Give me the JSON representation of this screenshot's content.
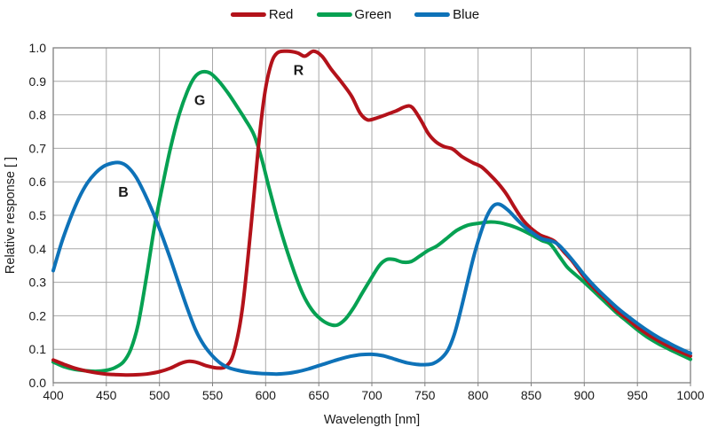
{
  "legend": {
    "items": [
      {
        "label": "Red",
        "color": "#b3121a"
      },
      {
        "label": "Green",
        "color": "#06a152"
      },
      {
        "label": "Blue",
        "color": "#0e72b8"
      }
    ]
  },
  "chart_data": {
    "type": "line",
    "title": "",
    "xlabel": "Wavelength [nm]",
    "ylabel": "Relative response [ ]",
    "xlim": [
      400,
      1000
    ],
    "ylim": [
      0.0,
      1.0
    ],
    "x_ticks": [
      400,
      450,
      500,
      550,
      600,
      650,
      700,
      750,
      800,
      850,
      900,
      950,
      1000
    ],
    "y_tick_labels": [
      "0.0",
      "0.1",
      "0.2",
      "0.3",
      "0.4",
      "0.5",
      "0.6",
      "0.7",
      "0.8",
      "0.9",
      "1.0"
    ],
    "grid": true,
    "legend_position": "top-center",
    "grid_color": "#a8a8a8",
    "frame_color": "#808080",
    "series": [
      {
        "name": "Red",
        "color": "#b3121a",
        "z": 2,
        "marker_label": {
          "text": "R",
          "x": 631,
          "y": 0.935
        },
        "points": [
          [
            400,
            0.068
          ],
          [
            410,
            0.055
          ],
          [
            420,
            0.044
          ],
          [
            430,
            0.036
          ],
          [
            440,
            0.03
          ],
          [
            450,
            0.026
          ],
          [
            460,
            0.024
          ],
          [
            470,
            0.023
          ],
          [
            480,
            0.024
          ],
          [
            490,
            0.027
          ],
          [
            500,
            0.033
          ],
          [
            510,
            0.043
          ],
          [
            520,
            0.058
          ],
          [
            528,
            0.064
          ],
          [
            536,
            0.06
          ],
          [
            545,
            0.05
          ],
          [
            555,
            0.044
          ],
          [
            563,
            0.05
          ],
          [
            570,
            0.09
          ],
          [
            578,
            0.22
          ],
          [
            586,
            0.46
          ],
          [
            593,
            0.7
          ],
          [
            599,
            0.86
          ],
          [
            605,
            0.95
          ],
          [
            611,
            0.985
          ],
          [
            620,
            0.99
          ],
          [
            630,
            0.985
          ],
          [
            637,
            0.975
          ],
          [
            645,
            0.99
          ],
          [
            653,
            0.975
          ],
          [
            662,
            0.935
          ],
          [
            672,
            0.895
          ],
          [
            681,
            0.855
          ],
          [
            689,
            0.805
          ],
          [
            696,
            0.785
          ],
          [
            704,
            0.79
          ],
          [
            713,
            0.8
          ],
          [
            723,
            0.812
          ],
          [
            732,
            0.825
          ],
          [
            738,
            0.822
          ],
          [
            746,
            0.785
          ],
          [
            753,
            0.745
          ],
          [
            760,
            0.72
          ],
          [
            768,
            0.705
          ],
          [
            776,
            0.698
          ],
          [
            785,
            0.675
          ],
          [
            795,
            0.657
          ],
          [
            803,
            0.645
          ],
          [
            811,
            0.622
          ],
          [
            819,
            0.595
          ],
          [
            827,
            0.562
          ],
          [
            835,
            0.52
          ],
          [
            843,
            0.483
          ],
          [
            851,
            0.458
          ],
          [
            859,
            0.44
          ],
          [
            866,
            0.432
          ],
          [
            873,
            0.42
          ],
          [
            881,
            0.39
          ],
          [
            889,
            0.362
          ],
          [
            900,
            0.315
          ],
          [
            910,
            0.28
          ],
          [
            920,
            0.25
          ],
          [
            930,
            0.217
          ],
          [
            940,
            0.192
          ],
          [
            950,
            0.166
          ],
          [
            960,
            0.144
          ],
          [
            970,
            0.125
          ],
          [
            980,
            0.108
          ],
          [
            990,
            0.093
          ],
          [
            1000,
            0.08
          ]
        ]
      },
      {
        "name": "Green",
        "color": "#06a152",
        "z": 1,
        "marker_label": {
          "text": "G",
          "x": 538,
          "y": 0.845
        },
        "points": [
          [
            400,
            0.062
          ],
          [
            410,
            0.048
          ],
          [
            420,
            0.04
          ],
          [
            430,
            0.036
          ],
          [
            440,
            0.034
          ],
          [
            450,
            0.037
          ],
          [
            458,
            0.045
          ],
          [
            466,
            0.062
          ],
          [
            473,
            0.1
          ],
          [
            480,
            0.175
          ],
          [
            488,
            0.32
          ],
          [
            495,
            0.46
          ],
          [
            502,
            0.575
          ],
          [
            510,
            0.695
          ],
          [
            518,
            0.795
          ],
          [
            526,
            0.868
          ],
          [
            533,
            0.912
          ],
          [
            540,
            0.928
          ],
          [
            548,
            0.924
          ],
          [
            556,
            0.9
          ],
          [
            565,
            0.863
          ],
          [
            573,
            0.825
          ],
          [
            581,
            0.785
          ],
          [
            589,
            0.74
          ],
          [
            596,
            0.672
          ],
          [
            603,
            0.585
          ],
          [
            611,
            0.49
          ],
          [
            619,
            0.405
          ],
          [
            627,
            0.33
          ],
          [
            635,
            0.265
          ],
          [
            643,
            0.22
          ],
          [
            651,
            0.192
          ],
          [
            659,
            0.176
          ],
          [
            667,
            0.172
          ],
          [
            675,
            0.19
          ],
          [
            683,
            0.225
          ],
          [
            691,
            0.268
          ],
          [
            699,
            0.31
          ],
          [
            707,
            0.35
          ],
          [
            714,
            0.368
          ],
          [
            721,
            0.368
          ],
          [
            729,
            0.36
          ],
          [
            737,
            0.362
          ],
          [
            745,
            0.378
          ],
          [
            753,
            0.395
          ],
          [
            761,
            0.408
          ],
          [
            770,
            0.43
          ],
          [
            780,
            0.455
          ],
          [
            790,
            0.47
          ],
          [
            800,
            0.476
          ],
          [
            810,
            0.48
          ],
          [
            820,
            0.478
          ],
          [
            830,
            0.47
          ],
          [
            840,
            0.458
          ],
          [
            850,
            0.442
          ],
          [
            860,
            0.425
          ],
          [
            868,
            0.414
          ],
          [
            876,
            0.38
          ],
          [
            884,
            0.345
          ],
          [
            892,
            0.322
          ],
          [
            900,
            0.3
          ],
          [
            910,
            0.27
          ],
          [
            920,
            0.24
          ],
          [
            930,
            0.21
          ],
          [
            940,
            0.184
          ],
          [
            950,
            0.158
          ],
          [
            960,
            0.135
          ],
          [
            970,
            0.116
          ],
          [
            980,
            0.1
          ],
          [
            990,
            0.085
          ],
          [
            1000,
            0.07
          ]
        ]
      },
      {
        "name": "Blue",
        "color": "#0e72b8",
        "z": 3,
        "marker_label": {
          "text": "B",
          "x": 466,
          "y": 0.572
        },
        "points": [
          [
            400,
            0.335
          ],
          [
            408,
            0.42
          ],
          [
            416,
            0.49
          ],
          [
            424,
            0.55
          ],
          [
            432,
            0.596
          ],
          [
            440,
            0.627
          ],
          [
            448,
            0.647
          ],
          [
            456,
            0.656
          ],
          [
            463,
            0.657
          ],
          [
            470,
            0.645
          ],
          [
            478,
            0.614
          ],
          [
            486,
            0.565
          ],
          [
            494,
            0.508
          ],
          [
            502,
            0.443
          ],
          [
            510,
            0.373
          ],
          [
            518,
            0.298
          ],
          [
            526,
            0.224
          ],
          [
            534,
            0.158
          ],
          [
            542,
            0.112
          ],
          [
            550,
            0.08
          ],
          [
            558,
            0.057
          ],
          [
            566,
            0.044
          ],
          [
            574,
            0.037
          ],
          [
            582,
            0.032
          ],
          [
            590,
            0.029
          ],
          [
            600,
            0.027
          ],
          [
            610,
            0.026
          ],
          [
            620,
            0.028
          ],
          [
            630,
            0.033
          ],
          [
            640,
            0.041
          ],
          [
            650,
            0.051
          ],
          [
            660,
            0.061
          ],
          [
            670,
            0.071
          ],
          [
            680,
            0.079
          ],
          [
            690,
            0.084
          ],
          [
            700,
            0.085
          ],
          [
            710,
            0.081
          ],
          [
            718,
            0.074
          ],
          [
            726,
            0.066
          ],
          [
            734,
            0.059
          ],
          [
            742,
            0.055
          ],
          [
            750,
            0.054
          ],
          [
            758,
            0.058
          ],
          [
            766,
            0.075
          ],
          [
            772,
            0.1
          ],
          [
            778,
            0.148
          ],
          [
            784,
            0.22
          ],
          [
            790,
            0.3
          ],
          [
            796,
            0.378
          ],
          [
            802,
            0.443
          ],
          [
            808,
            0.495
          ],
          [
            814,
            0.527
          ],
          [
            820,
            0.533
          ],
          [
            828,
            0.516
          ],
          [
            836,
            0.49
          ],
          [
            844,
            0.465
          ],
          [
            852,
            0.446
          ],
          [
            860,
            0.43
          ],
          [
            868,
            0.424
          ],
          [
            875,
            0.414
          ],
          [
            883,
            0.388
          ],
          [
            891,
            0.358
          ],
          [
            900,
            0.322
          ],
          [
            910,
            0.287
          ],
          [
            920,
            0.256
          ],
          [
            930,
            0.227
          ],
          [
            940,
            0.201
          ],
          [
            950,
            0.177
          ],
          [
            960,
            0.155
          ],
          [
            970,
            0.135
          ],
          [
            980,
            0.118
          ],
          [
            990,
            0.102
          ],
          [
            1000,
            0.088
          ]
        ]
      }
    ]
  }
}
